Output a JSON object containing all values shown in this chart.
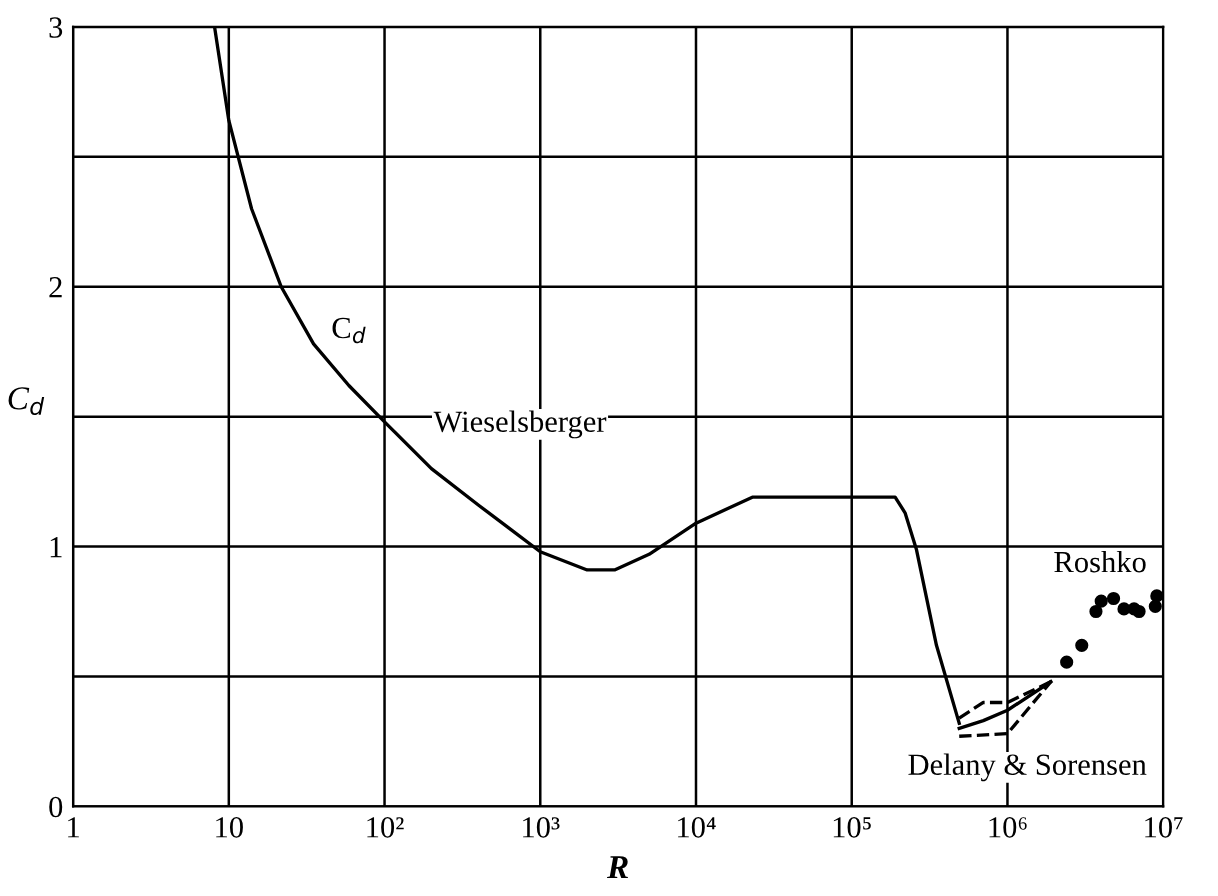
{
  "chart_data": {
    "type": "line",
    "xlabel": "R",
    "ylabel": "C$_{d}$",
    "log": "x",
    "grid": true,
    "xlim": [
      1,
      10000000
    ],
    "ylim": [
      0,
      3
    ],
    "xticks": [
      1,
      10,
      {
        "value": 100,
        "label": "10²"
      },
      {
        "value": 1000,
        "label": "10³"
      },
      {
        "value": 10000,
        "label": "10⁴"
      },
      {
        "value": 100000,
        "label": "10⁵"
      },
      {
        "value": 1000000,
        "label": "10⁶"
      },
      {
        "value": 10000000,
        "label": "10⁷"
      }
    ],
    "yticks": [
      0,
      {
        "value": 0.5,
        "label": null
      },
      1,
      {
        "value": 1.5,
        "label": null
      },
      2,
      {
        "value": 2.5,
        "label": null
      },
      3
    ],
    "series": [
      {
        "color": "#000000",
        "line_style": "solid",
        "x": [
          8.1,
          10,
          14,
          21.7,
          35,
          59,
          100,
          200,
          400,
          1000,
          2000,
          3000,
          5000,
          10000,
          23000,
          100000,
          190000,
          220000,
          260000,
          350000,
          490000
        ],
        "values": [
          3,
          2.64,
          2.3,
          2.0,
          1.78,
          1.62,
          1.48,
          1.3,
          1.16,
          0.98,
          0.91,
          0.91,
          0.97,
          1.09,
          1.19,
          1.19,
          1.19,
          1.13,
          0.99,
          0.62,
          0.32
        ]
      },
      {
        "color": "#000000",
        "line_style": "solid",
        "x": [
          490000,
          700000,
          1000000,
          1900000
        ],
        "values": [
          0.3,
          0.33,
          0.37,
          0.48
        ]
      },
      {
        "color": "#000000",
        "line_style": "dashed",
        "x": [
          490000,
          1000000,
          1900000
        ],
        "values": [
          0.27,
          0.28,
          0.48
        ]
      },
      {
        "color": "#000000",
        "line_style": "dashed",
        "x": [
          490000,
          700000,
          1000000,
          1900000
        ],
        "values": [
          0.34,
          0.4,
          0.4,
          0.48
        ]
      },
      {
        "type": "scatter",
        "color": "#000000",
        "marker": "circle",
        "x": [
          2400000,
          3000000,
          3700000,
          4000000,
          4800000,
          5600000,
          6500000,
          7000000,
          9100000,
          8900000
        ],
        "values": [
          0.555,
          0.62,
          0.75,
          0.79,
          0.8,
          0.76,
          0.76,
          0.75,
          0.81,
          0.77
        ]
      }
    ],
    "annotations": [
      {
        "text": "C$_{d}$",
        "x": 59,
        "y": 1.83
      },
      "Wieselsberger",
      "Roshko",
      "Delany & Sorensen"
    ]
  }
}
